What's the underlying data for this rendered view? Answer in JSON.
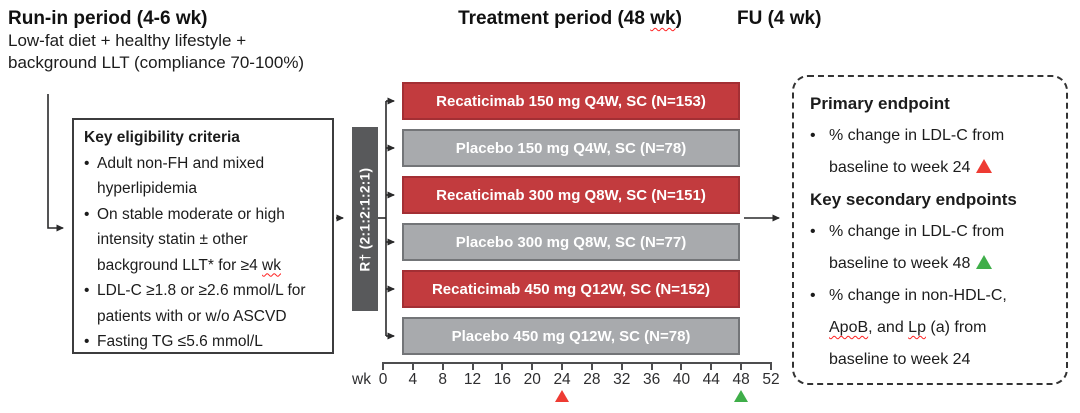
{
  "figure_type": "clinical-trial-study-design",
  "phases": {
    "run_in": {
      "title": "Run-in period (4-6 wk)",
      "description_line1": "Low-fat diet + healthy lifestyle +",
      "description_line2": "background LLT (compliance 70-100%)"
    },
    "treatment": {
      "title_pre": "Treatment period (48 ",
      "title_wavy": "wk",
      "title_post": ")"
    },
    "follow_up": {
      "title": "FU (4 wk)"
    }
  },
  "eligibility": {
    "title": "Key eligibility criteria",
    "bullet_char": "•",
    "b1_l1": "Adult non-FH and mixed",
    "b1_l2": "hyperlipidemia",
    "b2_l1": "On stable moderate or high",
    "b2_l2": "intensity statin ± other",
    "b2_l3_pre": "background LLT* for ≥4 ",
    "b2_l3_wavy": "wk",
    "b3_l1": "LDL-C ≥1.8 or ≥2.6 mmol/L for",
    "b3_l2": "patients with or w/o ASCVD",
    "b4_l1": "Fasting TG ≤5.6 mmol/L"
  },
  "randomization": {
    "label": "R† (2:1:2:1:2:1)"
  },
  "arms": [
    {
      "label": "Recaticimab 150 mg Q4W, SC (N=153)",
      "type": "recaticimab"
    },
    {
      "label": "Placebo 150 mg Q4W, SC (N=78)",
      "type": "placebo"
    },
    {
      "label": "Recaticimab 300 mg Q8W, SC (N=151)",
      "type": "recaticimab"
    },
    {
      "label": "Placebo 300 mg Q8W, SC (N=77)",
      "type": "placebo"
    },
    {
      "label": "Recaticimab 450 mg Q12W, SC (N=152)",
      "type": "recaticimab"
    },
    {
      "label": "Placebo 450 mg Q12W, SC (N=78)",
      "type": "placebo"
    }
  ],
  "axis": {
    "unit_label": "wk",
    "ticks": [
      "0",
      "4",
      "8",
      "12",
      "16",
      "20",
      "24",
      "28",
      "32",
      "36",
      "40",
      "44",
      "48",
      "52"
    ],
    "primary_marker_week": "24",
    "secondary_marker_week": "48"
  },
  "endpoints": {
    "primary_title": "Primary endpoint",
    "bullet_char": "•",
    "p1_l1": "% change in LDL-C from",
    "p1_l2": "baseline to week 24",
    "secondary_title": "Key secondary endpoints",
    "s1_l1": "% change in LDL-C from",
    "s1_l2": "baseline to week 48",
    "s2_l1": "% change in non-HDL-C,",
    "s2_l2_wavy1": "ApoB",
    "s2_l2_mid": ", and ",
    "s2_l2_wavy2": "Lp",
    "s2_l2_post": " (a) from",
    "s2_l3": "baseline to week 24"
  },
  "colors": {
    "recaticimab_bar": "#c23b3e",
    "recaticimab_border": "#a32f34",
    "placebo_bar": "#a8aaad",
    "placebo_border": "#737578",
    "randomization_bar": "#58595b",
    "primary_marker": "#ee3b33",
    "secondary_marker": "#3fae49",
    "connector_line": "#2a2a2b",
    "spellcheck_underline": "#ff1f1f"
  }
}
